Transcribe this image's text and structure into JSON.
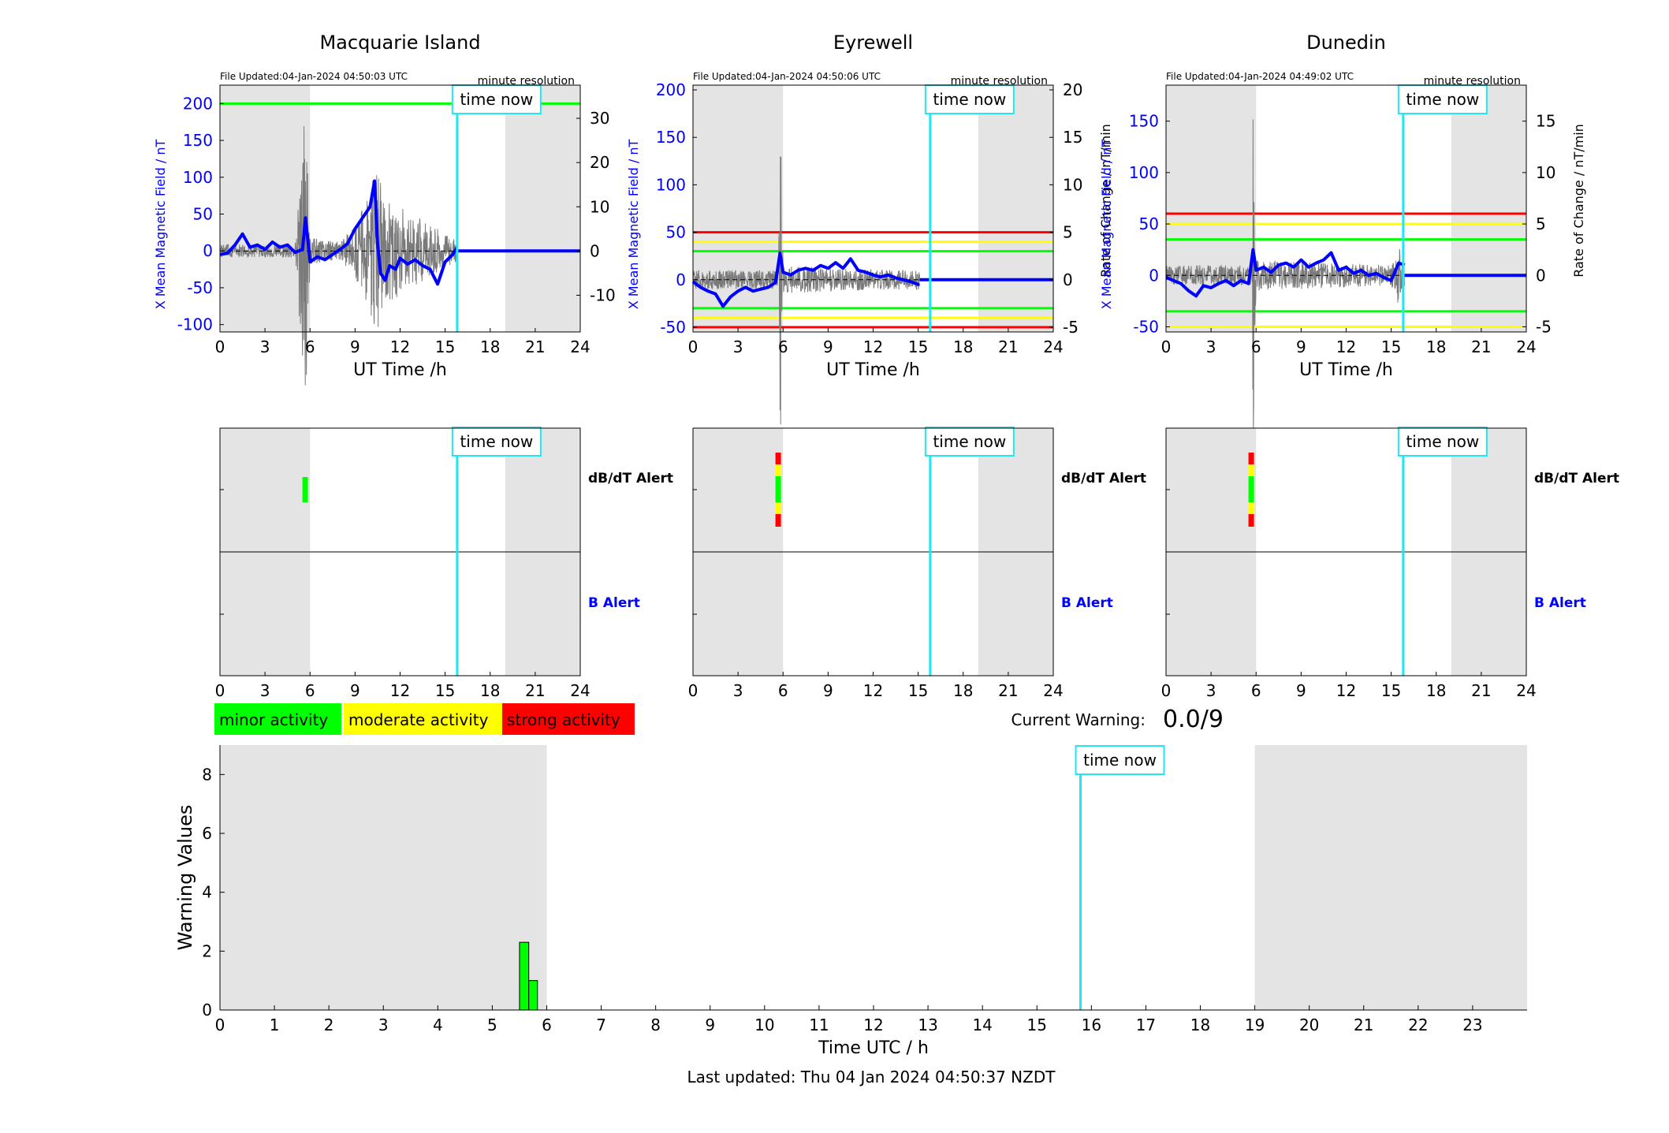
{
  "colors": {
    "shade": "#e4e4e4",
    "mag": "#0000ff",
    "rate": "#7a7a7a",
    "now": "#22e6f2",
    "red": "#ff0000",
    "yellow": "#ffff00",
    "green": "#00ff00",
    "minor": "#00ff00",
    "moderate": "#ffff00",
    "strong": "#ff0000"
  },
  "common": {
    "time_now": "time now",
    "x_label": "UT Time /h",
    "y_left_label": "X Mean Magnetic Field / nT",
    "y_right_label": "Rate of Change / nT/min",
    "resolution": "minute resolution",
    "dbdt_alert": "dB/dT Alert",
    "b_alert": "B Alert",
    "x_ticks": [
      "0",
      "3",
      "6",
      "9",
      "12",
      "15",
      "18",
      "21",
      "24"
    ]
  },
  "legend": {
    "minor": "minor activity",
    "moderate": "moderate activity",
    "strong": "strong activity"
  },
  "current_warning": {
    "label": "Current Warning:",
    "value": "0.0/9"
  },
  "footer": {
    "last_updated": "Last updated: Thu 04 Jan 2024 04:50:37 NZDT"
  },
  "chart_data": [
    {
      "type": "line",
      "title": "Macquarie Island",
      "file_updated": "File Updated:04-Jan-2024 04:50:03 UTC",
      "xlabel": "UT Time /h",
      "ylabel_left": "X Mean Magnetic Field / nT",
      "ylabel_right": "",
      "xlim": [
        0,
        24
      ],
      "ylim": [
        -110,
        225
      ],
      "yticks": [
        -100,
        -50,
        0,
        50,
        100,
        150,
        200
      ],
      "y2lim": [
        -18.3,
        37.5
      ],
      "y2ticks": [
        -10,
        0,
        10,
        20,
        30
      ],
      "shaded_hours": [
        [
          0,
          6
        ],
        [
          19,
          24
        ]
      ],
      "time_now": 15.8,
      "mag_last_hour": 15.8,
      "thresholds": [
        {
          "value": 200,
          "color": "green"
        }
      ],
      "mag_points": [
        [
          0,
          -5
        ],
        [
          0.5,
          -3
        ],
        [
          1,
          8
        ],
        [
          1.5,
          23
        ],
        [
          2,
          5
        ],
        [
          2.5,
          8
        ],
        [
          3,
          2
        ],
        [
          3.5,
          12
        ],
        [
          4,
          5
        ],
        [
          4.5,
          8
        ],
        [
          5,
          -2
        ],
        [
          5.5,
          2
        ],
        [
          5.7,
          45
        ],
        [
          6,
          -15
        ],
        [
          6.5,
          -8
        ],
        [
          7,
          -12
        ],
        [
          7.5,
          -5
        ],
        [
          8,
          2
        ],
        [
          8.5,
          10
        ],
        [
          9,
          30
        ],
        [
          9.5,
          45
        ],
        [
          10,
          60
        ],
        [
          10.3,
          95
        ],
        [
          10.5,
          10
        ],
        [
          10.7,
          -30
        ],
        [
          11,
          -40
        ],
        [
          11.3,
          -20
        ],
        [
          11.7,
          -25
        ],
        [
          12,
          -10
        ],
        [
          12.5,
          -18
        ],
        [
          13,
          -12
        ],
        [
          13.5,
          -20
        ],
        [
          14,
          -25
        ],
        [
          14.5,
          -45
        ],
        [
          15,
          -15
        ],
        [
          15.5,
          -5
        ],
        [
          15.8,
          5
        ]
      ],
      "rate_amplitude": [
        [
          0,
          1.5
        ],
        [
          5,
          1.5
        ],
        [
          5.7,
          35
        ],
        [
          6,
          3
        ],
        [
          8,
          2
        ],
        [
          9,
          6
        ],
        [
          10,
          14
        ],
        [
          10.5,
          20
        ],
        [
          11,
          12
        ],
        [
          12,
          10
        ],
        [
          13,
          8
        ],
        [
          14,
          6
        ],
        [
          15,
          4
        ],
        [
          15.8,
          3
        ]
      ]
    },
    {
      "type": "line",
      "title": "Eyrewell",
      "file_updated": "File Updated:04-Jan-2024 04:50:06 UTC",
      "xlabel": "UT Time /h",
      "ylabel_left": "X Mean Magnetic Field / nT",
      "ylabel_right": "Rate of Change / nT/min",
      "xlim": [
        0,
        24
      ],
      "ylim": [
        -55,
        205
      ],
      "yticks": [
        -50,
        0,
        50,
        100,
        150,
        200
      ],
      "y2lim": [
        -5.5,
        20.5
      ],
      "y2ticks": [
        -5,
        0,
        5,
        10,
        15,
        20
      ],
      "shaded_hours": [
        [
          0,
          6
        ],
        [
          19,
          24
        ]
      ],
      "time_now": 15.8,
      "mag_last_hour": 15.1,
      "thresholds": [
        {
          "value": 50,
          "color": "red"
        },
        {
          "value": 40,
          "color": "yellow"
        },
        {
          "value": 30,
          "color": "green"
        },
        {
          "value": -30,
          "color": "green"
        },
        {
          "value": -40,
          "color": "yellow"
        },
        {
          "value": -50,
          "color": "red"
        }
      ],
      "mag_points": [
        [
          0,
          -2
        ],
        [
          0.5,
          -8
        ],
        [
          1,
          -12
        ],
        [
          1.5,
          -15
        ],
        [
          2,
          -28
        ],
        [
          2.5,
          -18
        ],
        [
          3,
          -12
        ],
        [
          3.5,
          -8
        ],
        [
          4,
          -12
        ],
        [
          4.5,
          -10
        ],
        [
          5,
          -8
        ],
        [
          5.5,
          -3
        ],
        [
          5.8,
          28
        ],
        [
          6,
          8
        ],
        [
          6.5,
          5
        ],
        [
          7,
          10
        ],
        [
          7.5,
          12
        ],
        [
          8,
          10
        ],
        [
          8.5,
          15
        ],
        [
          9,
          12
        ],
        [
          9.5,
          18
        ],
        [
          10,
          12
        ],
        [
          10.5,
          22
        ],
        [
          11,
          10
        ],
        [
          11.5,
          8
        ],
        [
          12,
          5
        ],
        [
          12.5,
          3
        ],
        [
          13,
          5
        ],
        [
          13.5,
          2
        ],
        [
          14,
          0
        ],
        [
          14.5,
          -2
        ],
        [
          15,
          -5
        ],
        [
          15.1,
          -5
        ]
      ],
      "rate_amplitude": [
        [
          0,
          1
        ],
        [
          5.7,
          1
        ],
        [
          5.8,
          19
        ],
        [
          6,
          1.5
        ],
        [
          10,
          1.2
        ],
        [
          15.1,
          1
        ]
      ]
    },
    {
      "type": "line",
      "title": "Dunedin",
      "file_updated": "File Updated:04-Jan-2024 04:49:02 UTC",
      "xlabel": "UT Time /h",
      "ylabel_left": "X Mean Magnetic Field / nT",
      "ylabel_right": "Rate of Change / nT/min",
      "xlim": [
        0,
        24
      ],
      "ylim": [
        -55,
        185
      ],
      "yticks": [
        -50,
        0,
        50,
        100,
        150
      ],
      "y2lim": [
        -5.5,
        18.5
      ],
      "y2ticks": [
        -5,
        0,
        5,
        10,
        15
      ],
      "shaded_hours": [
        [
          0,
          6
        ],
        [
          19,
          24
        ]
      ],
      "time_now": 15.8,
      "mag_last_hour": 15.9,
      "thresholds": [
        {
          "value": 60,
          "color": "red"
        },
        {
          "value": 50,
          "color": "yellow"
        },
        {
          "value": 35,
          "color": "green"
        },
        {
          "value": -35,
          "color": "green"
        },
        {
          "value": -50,
          "color": "yellow"
        }
      ],
      "mag_points": [
        [
          0,
          -2
        ],
        [
          0.5,
          -5
        ],
        [
          1,
          -8
        ],
        [
          1.5,
          -15
        ],
        [
          2,
          -20
        ],
        [
          2.5,
          -10
        ],
        [
          3,
          -12
        ],
        [
          3.5,
          -8
        ],
        [
          4,
          -5
        ],
        [
          4.5,
          -10
        ],
        [
          5,
          -5
        ],
        [
          5.5,
          -8
        ],
        [
          5.8,
          25
        ],
        [
          6,
          5
        ],
        [
          6.5,
          8
        ],
        [
          7,
          3
        ],
        [
          7.5,
          10
        ],
        [
          8,
          12
        ],
        [
          8.5,
          8
        ],
        [
          9,
          15
        ],
        [
          9.5,
          8
        ],
        [
          10,
          12
        ],
        [
          10.5,
          15
        ],
        [
          11,
          22
        ],
        [
          11.5,
          5
        ],
        [
          12,
          8
        ],
        [
          12.5,
          2
        ],
        [
          13,
          5
        ],
        [
          13.5,
          0
        ],
        [
          14,
          2
        ],
        [
          14.5,
          -2
        ],
        [
          15,
          -5
        ],
        [
          15.5,
          12
        ],
        [
          15.9,
          10
        ]
      ],
      "rate_amplitude": [
        [
          0,
          1
        ],
        [
          5.7,
          1
        ],
        [
          5.8,
          18
        ],
        [
          6,
          1.5
        ],
        [
          15,
          1
        ],
        [
          15.5,
          3
        ],
        [
          15.9,
          1
        ]
      ]
    },
    {
      "type": "alert",
      "station": "Macquarie Island",
      "xlim": [
        0,
        24
      ],
      "shaded_hours": [
        [
          0,
          6
        ],
        [
          19,
          24
        ]
      ],
      "time_now": 15.8,
      "dbdt_alert": [
        {
          "hour": 5.65,
          "level": "minor"
        }
      ],
      "b_alert": []
    },
    {
      "type": "alert",
      "station": "Eyrewell",
      "xlim": [
        0,
        24
      ],
      "shaded_hours": [
        [
          0,
          6
        ],
        [
          19,
          24
        ]
      ],
      "time_now": 15.8,
      "dbdt_alert": [
        {
          "hour": 5.65,
          "level": "strong"
        }
      ],
      "b_alert": []
    },
    {
      "type": "alert",
      "station": "Dunedin",
      "xlim": [
        0,
        24
      ],
      "shaded_hours": [
        [
          0,
          6
        ],
        [
          19,
          24
        ]
      ],
      "time_now": 15.8,
      "dbdt_alert": [
        {
          "hour": 5.65,
          "level": "strong"
        }
      ],
      "b_alert": []
    },
    {
      "type": "bar",
      "xlabel": "Time UTC / h",
      "ylabel": "Warning Values",
      "xlim": [
        0,
        24
      ],
      "ylim": [
        0,
        9
      ],
      "xticks": [
        0,
        1,
        2,
        3,
        4,
        5,
        6,
        7,
        8,
        9,
        10,
        11,
        12,
        13,
        14,
        15,
        16,
        17,
        18,
        19,
        20,
        21,
        22,
        23
      ],
      "yticks": [
        0,
        2,
        4,
        6,
        8
      ],
      "shaded_hours": [
        [
          0,
          6
        ],
        [
          19,
          24
        ]
      ],
      "time_now": 15.8,
      "bars": [
        {
          "start": 5.5,
          "end": 5.67,
          "value": 2.3
        },
        {
          "start": 5.67,
          "end": 5.83,
          "value": 1.0
        }
      ]
    }
  ]
}
